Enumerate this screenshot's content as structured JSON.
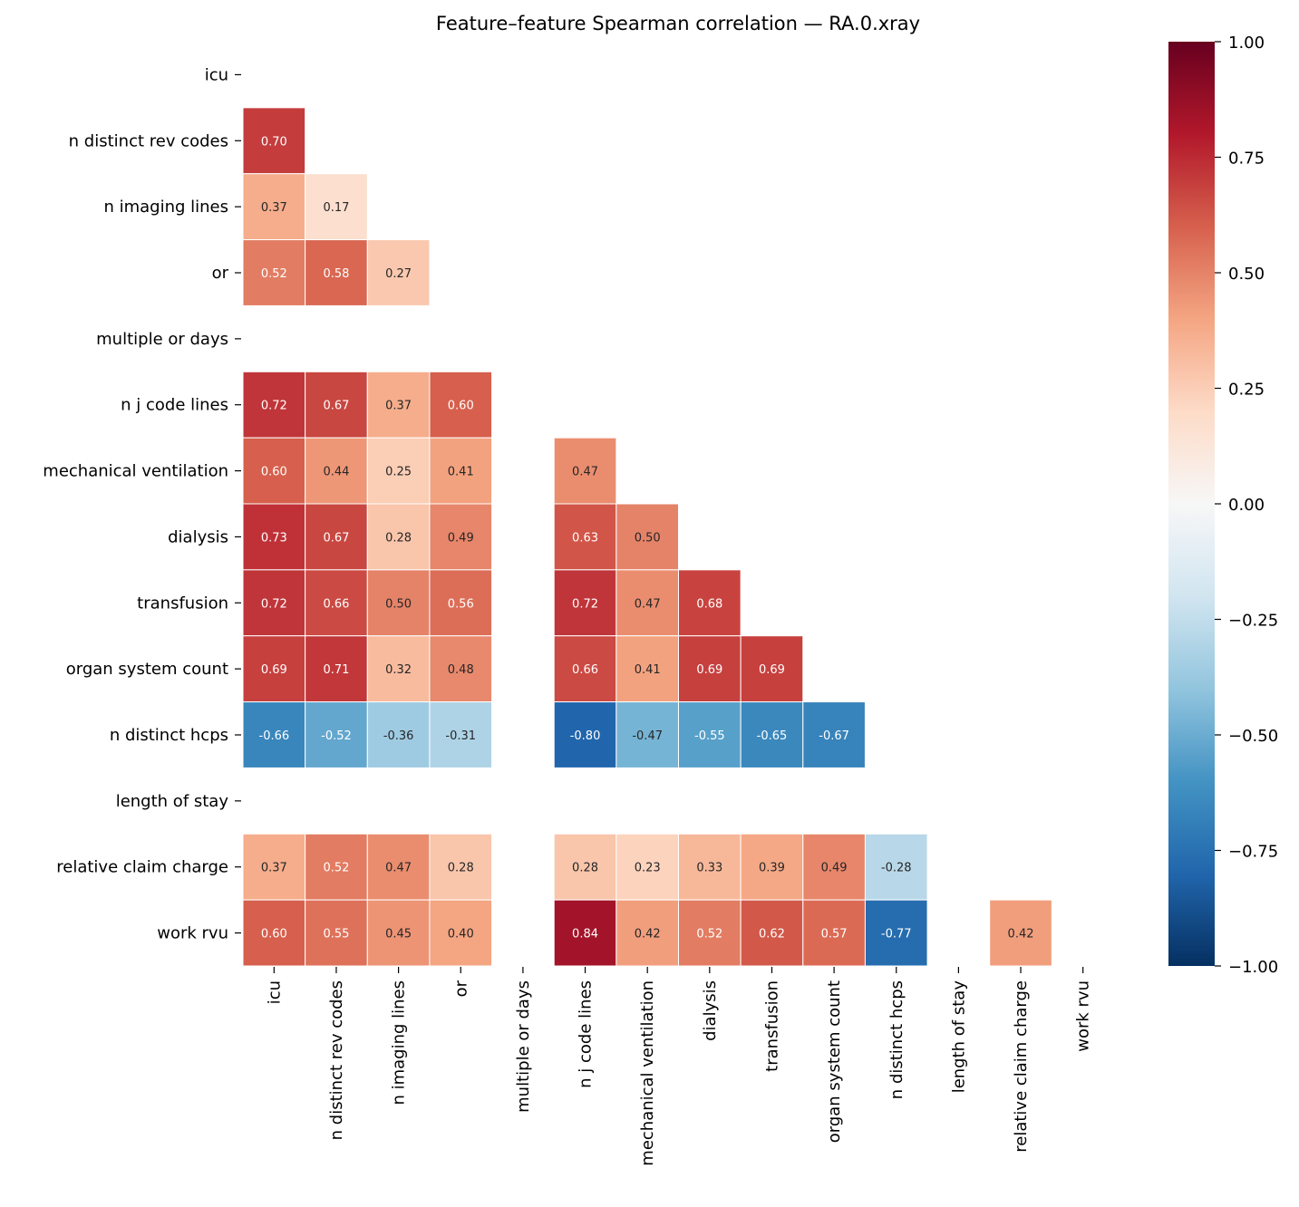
{
  "chart_data": {
    "type": "heatmap",
    "title": "Feature–feature Spearman correlation — RA.0.xray",
    "labels": [
      "icu",
      "n distinct rev codes",
      "n imaging lines",
      "or",
      "multiple or days",
      "n j code lines",
      "mechanical ventilation",
      "dialysis",
      "transfusion",
      "organ system count",
      "n distinct hcps",
      "length of stay",
      "relative claim charge",
      "work rvu"
    ],
    "matrix": [
      [
        null,
        null,
        null,
        null,
        null,
        null,
        null,
        null,
        null,
        null,
        null,
        null,
        null,
        null
      ],
      [
        0.7,
        null,
        null,
        null,
        null,
        null,
        null,
        null,
        null,
        null,
        null,
        null,
        null,
        null
      ],
      [
        0.37,
        0.17,
        null,
        null,
        null,
        null,
        null,
        null,
        null,
        null,
        null,
        null,
        null,
        null
      ],
      [
        0.52,
        0.58,
        0.27,
        null,
        null,
        null,
        null,
        null,
        null,
        null,
        null,
        null,
        null,
        null
      ],
      [
        null,
        null,
        null,
        null,
        null,
        null,
        null,
        null,
        null,
        null,
        null,
        null,
        null,
        null
      ],
      [
        0.72,
        0.67,
        0.37,
        0.6,
        null,
        null,
        null,
        null,
        null,
        null,
        null,
        null,
        null,
        null
      ],
      [
        0.6,
        0.44,
        0.25,
        0.41,
        null,
        0.47,
        null,
        null,
        null,
        null,
        null,
        null,
        null,
        null
      ],
      [
        0.73,
        0.67,
        0.28,
        0.49,
        null,
        0.63,
        0.5,
        null,
        null,
        null,
        null,
        null,
        null,
        null
      ],
      [
        0.72,
        0.66,
        0.5,
        0.56,
        null,
        0.72,
        0.47,
        0.68,
        null,
        null,
        null,
        null,
        null,
        null
      ],
      [
        0.69,
        0.71,
        0.32,
        0.48,
        null,
        0.66,
        0.41,
        0.69,
        0.69,
        null,
        null,
        null,
        null,
        null
      ],
      [
        -0.66,
        -0.52,
        -0.36,
        -0.31,
        null,
        -0.8,
        -0.47,
        -0.55,
        -0.65,
        -0.67,
        null,
        null,
        null,
        null
      ],
      [
        null,
        null,
        null,
        null,
        null,
        null,
        null,
        null,
        null,
        null,
        null,
        null,
        null,
        null
      ],
      [
        0.37,
        0.52,
        0.47,
        0.28,
        null,
        0.28,
        0.23,
        0.33,
        0.39,
        0.49,
        -0.28,
        null,
        null,
        null
      ],
      [
        0.6,
        0.55,
        0.45,
        0.4,
        null,
        0.84,
        0.42,
        0.52,
        0.62,
        0.57,
        -0.77,
        null,
        0.42,
        null
      ]
    ],
    "colormap": "RdBu_r",
    "vmin": -1,
    "vmax": 1,
    "colorbar_ticks": [
      "1.00",
      "0.75",
      "0.50",
      "0.25",
      "0.00",
      "−0.25",
      "−0.50",
      "−0.75",
      "−1.00"
    ],
    "colorbar_values": [
      1,
      0.75,
      0.5,
      0.25,
      0,
      -0.25,
      -0.5,
      -0.75,
      -1
    ],
    "mask": "upper triangle and diagonal; rows/columns with no values left blank"
  }
}
